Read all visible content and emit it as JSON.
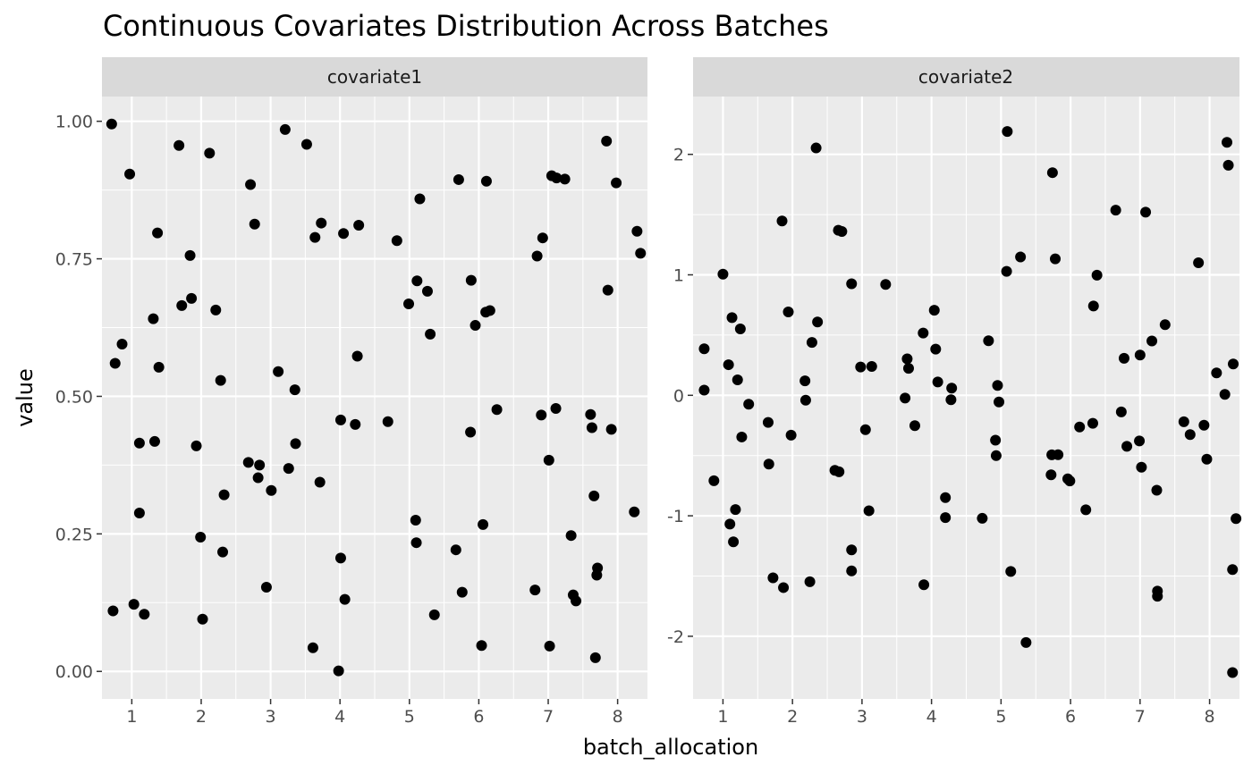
{
  "chart_data": {
    "type": "scatter",
    "title": "Continuous Covariates Distribution Across Batches",
    "xlabel": "batch_allocation",
    "ylabel": "value",
    "grid": true,
    "legend": "none",
    "colors": {
      "panel_bg": "#ebebeb",
      "strip_bg": "#d9d9d9",
      "grid": "#ffffff",
      "point": "#000000",
      "tick_text": "#4d4d4d"
    },
    "panels": [
      {
        "name": "covariate1",
        "xlim": [
          0.57,
          8.43
        ],
        "ylim": [
          -0.05,
          1.045
        ],
        "x_ticks": [
          1,
          2,
          3,
          4,
          5,
          6,
          7,
          8
        ],
        "y_ticks": [
          0.0,
          0.25,
          0.5,
          0.75,
          1.0
        ],
        "y_tick_labels": [
          "0.00",
          "0.25",
          "0.50",
          "0.75",
          "1.00"
        ],
        "points": [
          [
            0.71,
            0.995
          ],
          [
            0.76,
            0.56
          ],
          [
            0.73,
            0.11
          ],
          [
            0.86,
            0.595
          ],
          [
            0.97,
            0.904
          ],
          [
            1.03,
            0.122
          ],
          [
            1.11,
            0.415
          ],
          [
            1.11,
            0.288
          ],
          [
            1.18,
            0.104
          ],
          [
            1.31,
            0.641
          ],
          [
            1.33,
            0.418
          ],
          [
            1.37,
            0.797
          ],
          [
            1.39,
            0.553
          ],
          [
            1.68,
            0.956
          ],
          [
            1.72,
            0.665
          ],
          [
            1.84,
            0.756
          ],
          [
            1.86,
            0.678
          ],
          [
            1.93,
            0.41
          ],
          [
            1.99,
            0.244
          ],
          [
            2.02,
            0.095
          ],
          [
            2.12,
            0.942
          ],
          [
            2.21,
            0.657
          ],
          [
            2.28,
            0.529
          ],
          [
            2.31,
            0.217
          ],
          [
            2.33,
            0.321
          ],
          [
            2.68,
            0.38
          ],
          [
            2.71,
            0.885
          ],
          [
            2.77,
            0.813
          ],
          [
            2.82,
            0.352
          ],
          [
            2.84,
            0.375
          ],
          [
            2.94,
            0.153
          ],
          [
            3.01,
            0.329
          ],
          [
            3.11,
            0.545
          ],
          [
            3.21,
            0.985
          ],
          [
            3.26,
            0.369
          ],
          [
            3.35,
            0.512
          ],
          [
            3.36,
            0.414
          ],
          [
            3.52,
            0.958
          ],
          [
            3.61,
            0.043
          ],
          [
            3.64,
            0.789
          ],
          [
            3.71,
            0.344
          ],
          [
            3.73,
            0.815
          ],
          [
            3.98,
            0.001
          ],
          [
            4.01,
            0.457
          ],
          [
            4.01,
            0.206
          ],
          [
            4.05,
            0.796
          ],
          [
            4.07,
            0.131
          ],
          [
            4.22,
            0.449
          ],
          [
            4.25,
            0.573
          ],
          [
            4.27,
            0.811
          ],
          [
            4.69,
            0.454
          ],
          [
            4.82,
            0.783
          ],
          [
            4.99,
            0.668
          ],
          [
            5.09,
            0.275
          ],
          [
            5.1,
            0.234
          ],
          [
            5.11,
            0.71
          ],
          [
            5.15,
            0.859
          ],
          [
            5.26,
            0.691
          ],
          [
            5.3,
            0.613
          ],
          [
            5.36,
            0.103
          ],
          [
            5.67,
            0.221
          ],
          [
            5.71,
            0.894
          ],
          [
            5.76,
            0.144
          ],
          [
            5.88,
            0.435
          ],
          [
            5.89,
            0.711
          ],
          [
            5.95,
            0.629
          ],
          [
            6.04,
            0.047
          ],
          [
            6.06,
            0.267
          ],
          [
            6.1,
            0.653
          ],
          [
            6.11,
            0.891
          ],
          [
            6.16,
            0.656
          ],
          [
            6.26,
            0.476
          ],
          [
            6.81,
            0.148
          ],
          [
            6.84,
            0.755
          ],
          [
            6.9,
            0.466
          ],
          [
            6.92,
            0.788
          ],
          [
            7.01,
            0.384
          ],
          [
            7.02,
            0.046
          ],
          [
            7.05,
            0.901
          ],
          [
            7.11,
            0.478
          ],
          [
            7.12,
            0.897
          ],
          [
            7.24,
            0.895
          ],
          [
            7.33,
            0.247
          ],
          [
            7.36,
            0.139
          ],
          [
            7.4,
            0.128
          ],
          [
            7.61,
            0.467
          ],
          [
            7.63,
            0.443
          ],
          [
            7.66,
            0.319
          ],
          [
            7.68,
            0.025
          ],
          [
            7.71,
            0.188
          ],
          [
            7.7,
            0.175
          ],
          [
            7.84,
            0.964
          ],
          [
            7.86,
            0.693
          ],
          [
            7.91,
            0.44
          ],
          [
            7.98,
            0.888
          ],
          [
            8.24,
            0.29
          ],
          [
            8.28,
            0.8
          ],
          [
            8.33,
            0.76
          ]
        ]
      },
      {
        "name": "covariate2",
        "xlim": [
          0.57,
          8.43
        ],
        "ylim": [
          -2.52,
          2.48
        ],
        "x_ticks": [
          1,
          2,
          3,
          4,
          5,
          6,
          7,
          8
        ],
        "y_ticks": [
          -2,
          -1,
          0,
          1,
          2
        ],
        "y_tick_labels": [
          "-2",
          "-1",
          "0",
          "1",
          "2"
        ],
        "points": [
          [
            0.73,
            0.386
          ],
          [
            0.73,
            0.043
          ],
          [
            0.87,
            -0.709
          ],
          [
            1.0,
            1.006
          ],
          [
            1.08,
            0.254
          ],
          [
            1.1,
            -1.069
          ],
          [
            1.13,
            0.645
          ],
          [
            1.15,
            -1.216
          ],
          [
            1.18,
            -0.948
          ],
          [
            1.21,
            0.128
          ],
          [
            1.25,
            0.551
          ],
          [
            1.27,
            -0.346
          ],
          [
            1.37,
            -0.074
          ],
          [
            1.65,
            -0.225
          ],
          [
            1.66,
            -0.571
          ],
          [
            1.72,
            -1.515
          ],
          [
            1.85,
            1.447
          ],
          [
            1.87,
            -1.596
          ],
          [
            1.94,
            0.692
          ],
          [
            1.98,
            -0.331
          ],
          [
            2.18,
            0.12
          ],
          [
            2.19,
            -0.04
          ],
          [
            2.25,
            -1.547
          ],
          [
            2.28,
            0.439
          ],
          [
            2.34,
            2.053
          ],
          [
            2.36,
            0.609
          ],
          [
            2.61,
            -0.623
          ],
          [
            2.66,
            1.37
          ],
          [
            2.67,
            -0.635
          ],
          [
            2.71,
            1.36
          ],
          [
            2.85,
            0.926
          ],
          [
            2.85,
            -1.283
          ],
          [
            2.85,
            -1.457
          ],
          [
            2.98,
            0.235
          ],
          [
            3.05,
            -0.285
          ],
          [
            3.1,
            -0.958
          ],
          [
            3.14,
            0.24
          ],
          [
            3.34,
            0.92
          ],
          [
            3.62,
            -0.023
          ],
          [
            3.65,
            0.303
          ],
          [
            3.67,
            0.224
          ],
          [
            3.76,
            -0.252
          ],
          [
            3.88,
            0.517
          ],
          [
            3.89,
            -1.572
          ],
          [
            4.04,
            0.706
          ],
          [
            4.06,
            0.383
          ],
          [
            4.09,
            0.111
          ],
          [
            4.2,
            -0.849
          ],
          [
            4.2,
            -1.015
          ],
          [
            4.28,
            -0.037
          ],
          [
            4.29,
            0.06
          ],
          [
            4.73,
            -1.021
          ],
          [
            4.82,
            0.453
          ],
          [
            4.92,
            -0.372
          ],
          [
            4.93,
            -0.5
          ],
          [
            4.95,
            0.082
          ],
          [
            4.97,
            -0.055
          ],
          [
            5.08,
            1.029
          ],
          [
            5.09,
            2.19
          ],
          [
            5.14,
            -1.462
          ],
          [
            5.28,
            1.148
          ],
          [
            5.36,
            -2.052
          ],
          [
            5.72,
            -0.66
          ],
          [
            5.73,
            -0.494
          ],
          [
            5.74,
            1.848
          ],
          [
            5.78,
            1.133
          ],
          [
            5.82,
            -0.493
          ],
          [
            5.96,
            -0.693
          ],
          [
            5.99,
            -0.711
          ],
          [
            6.13,
            -0.263
          ],
          [
            6.22,
            -0.95
          ],
          [
            6.32,
            -0.232
          ],
          [
            6.33,
            0.741
          ],
          [
            6.38,
            0.997
          ],
          [
            6.65,
            1.537
          ],
          [
            6.73,
            -0.138
          ],
          [
            6.77,
            0.307
          ],
          [
            6.81,
            -0.423
          ],
          [
            6.99,
            -0.379
          ],
          [
            7.0,
            0.334
          ],
          [
            7.02,
            -0.597
          ],
          [
            7.08,
            1.52
          ],
          [
            7.17,
            0.451
          ],
          [
            7.24,
            -0.788
          ],
          [
            7.25,
            -1.668
          ],
          [
            7.25,
            -1.625
          ],
          [
            7.36,
            0.586
          ],
          [
            7.63,
            -0.219
          ],
          [
            7.72,
            -0.326
          ],
          [
            7.84,
            1.1
          ],
          [
            7.92,
            -0.248
          ],
          [
            7.96,
            -0.53
          ],
          [
            8.1,
            0.186
          ],
          [
            8.22,
            0.008
          ],
          [
            8.25,
            2.1
          ],
          [
            8.27,
            1.91
          ],
          [
            8.34,
            0.26
          ],
          [
            8.33,
            -1.446
          ],
          [
            8.33,
            -2.301
          ],
          [
            8.38,
            -1.023
          ]
        ]
      }
    ]
  }
}
